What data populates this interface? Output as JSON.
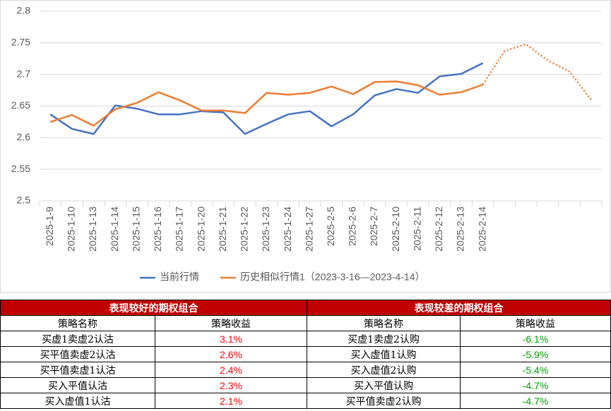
{
  "chart_data": {
    "type": "line",
    "categories": [
      "2025-1-9",
      "2025-1-10",
      "2025-1-13",
      "2025-1-14",
      "2025-1-15",
      "2025-1-16",
      "2025-1-17",
      "2025-1-20",
      "2025-1-21",
      "2025-1-22",
      "2025-1-23",
      "2025-1-24",
      "2025-1-27",
      "2025-2-5",
      "2025-2-6",
      "2025-2-7",
      "2025-2-10",
      "2025-2-11",
      "2025-2-12",
      "2025-2-13",
      "2025-2-14",
      null,
      null,
      null,
      null,
      null
    ],
    "series": [
      {
        "name": "当前行情",
        "color": "#4472c4",
        "values": [
          2.637,
          2.614,
          2.606,
          2.651,
          2.646,
          2.637,
          2.637,
          2.642,
          2.64,
          2.606,
          2.622,
          2.637,
          2.642,
          2.618,
          2.637,
          2.667,
          2.677,
          2.671,
          2.697,
          2.701,
          2.718,
          null,
          null,
          null,
          null,
          null
        ]
      },
      {
        "name": "历史相似行情1（2023-3-16—2023-4-14）",
        "color": "#ed7d31",
        "dotted_from": 20,
        "values": [
          2.625,
          2.636,
          2.619,
          2.645,
          2.655,
          2.672,
          2.659,
          2.643,
          2.643,
          2.639,
          2.671,
          2.668,
          2.671,
          2.681,
          2.669,
          2.688,
          2.689,
          2.683,
          2.668,
          2.672,
          2.684,
          2.737,
          2.748,
          2.722,
          2.705,
          2.66
        ]
      }
    ],
    "ylim": [
      2.5,
      2.8
    ],
    "yticks": [
      2.5,
      2.55,
      2.6,
      2.65,
      2.7,
      2.75,
      2.8
    ],
    "grid": true,
    "legend": "bottom"
  },
  "table": {
    "groups": [
      "表现较好的期权组合",
      "表现较差的期权组合"
    ],
    "header": [
      "策略名称",
      "策略收益",
      "策略名称",
      "策略收益"
    ],
    "rows": [
      [
        "买虚1卖虚2认沽",
        "3.1%",
        "买虚1卖虚2认购",
        "-6.1%"
      ],
      [
        "买平值卖虚2认沽",
        "2.6%",
        "买入虚值1认购",
        "-5.9%"
      ],
      [
        "买平值卖虚1认沽",
        "2.4%",
        "买入虚值2认购",
        "-5.4%"
      ],
      [
        "买入平值认沽",
        "2.3%",
        "买入平值认购",
        "-4.7%"
      ],
      [
        "买入虚值1认沽",
        "2.1%",
        "买平值卖虚2认购",
        "-4.7%"
      ]
    ]
  }
}
